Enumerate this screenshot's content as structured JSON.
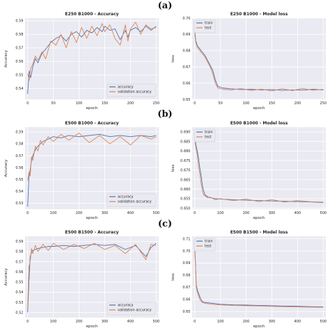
{
  "panel_labels": [
    "(a)",
    "(b)",
    "(c)"
  ],
  "colors": {
    "series_a": "#4c72b0",
    "series_b": "#dd8452",
    "plot_bg": "#eaeaf2"
  },
  "chart_data": [
    {
      "type": "line",
      "panel": "a",
      "title": "E250 B1000 - Accuracy",
      "xlabel": "epoch",
      "ylabel": "Accuracy",
      "xlim": [
        -5,
        255
      ],
      "ylim": [
        0.532,
        0.592
      ],
      "xticks": [
        0,
        50,
        100,
        150,
        200,
        250
      ],
      "yticks": [
        0.54,
        0.55,
        0.56,
        0.57,
        0.58,
        0.59
      ],
      "legend": "bottom-right",
      "grid": true,
      "series": [
        {
          "name": "accuracy",
          "x": [
            0,
            3,
            6,
            10,
            15,
            20,
            28,
            35,
            45,
            55,
            65,
            75,
            85,
            95,
            105,
            115,
            125,
            135,
            145,
            150,
            160,
            170,
            180,
            190,
            195,
            200,
            210,
            220,
            230,
            240,
            250
          ],
          "y": [
            0.536,
            0.553,
            0.548,
            0.556,
            0.562,
            0.559,
            0.566,
            0.569,
            0.574,
            0.577,
            0.579,
            0.575,
            0.58,
            0.582,
            0.578,
            0.583,
            0.581,
            0.585,
            0.582,
            0.586,
            0.583,
            0.584,
            0.576,
            0.583,
            0.578,
            0.583,
            0.585,
            0.582,
            0.586,
            0.583,
            0.586
          ]
        },
        {
          "name": "validation accuracy",
          "x": [
            0,
            3,
            6,
            10,
            15,
            20,
            28,
            35,
            45,
            55,
            65,
            75,
            85,
            95,
            105,
            115,
            125,
            135,
            145,
            150,
            160,
            170,
            180,
            190,
            195,
            200,
            210,
            220,
            230,
            240,
            250
          ],
          "y": [
            0.551,
            0.546,
            0.555,
            0.558,
            0.564,
            0.561,
            0.567,
            0.562,
            0.575,
            0.572,
            0.58,
            0.57,
            0.582,
            0.574,
            0.585,
            0.577,
            0.586,
            0.579,
            0.588,
            0.582,
            0.587,
            0.577,
            0.572,
            0.587,
            0.575,
            0.584,
            0.589,
            0.58,
            0.587,
            0.584,
            0.585
          ]
        }
      ]
    },
    {
      "type": "line",
      "panel": "a",
      "title": "E250 B1000 - Model loss",
      "xlabel": "epoch",
      "ylabel": "loss",
      "xlim": [
        -5,
        255
      ],
      "ylim": [
        0.65,
        0.7
      ],
      "xticks": [
        0,
        50,
        100,
        150,
        200,
        250
      ],
      "yticks": [
        0.65,
        0.66,
        0.67,
        0.68,
        0.69,
        0.7
      ],
      "legend": "top-left",
      "grid": true,
      "series": [
        {
          "name": "train",
          "x": [
            0,
            2,
            5,
            10,
            15,
            20,
            25,
            30,
            35,
            40,
            45,
            55,
            70,
            90,
            110,
            130,
            150,
            170,
            190,
            210,
            230,
            250
          ],
          "y": [
            0.692,
            0.686,
            0.683,
            0.681,
            0.679,
            0.677,
            0.674,
            0.671,
            0.668,
            0.662,
            0.658,
            0.657,
            0.6565,
            0.656,
            0.6562,
            0.6558,
            0.656,
            0.6556,
            0.6558,
            0.6557,
            0.6562,
            0.6558
          ]
        },
        {
          "name": "test",
          "x": [
            0,
            2,
            5,
            10,
            15,
            20,
            25,
            30,
            35,
            40,
            45,
            55,
            70,
            90,
            110,
            130,
            150,
            170,
            190,
            210,
            230,
            250
          ],
          "y": [
            0.69,
            0.685,
            0.682,
            0.68,
            0.678,
            0.676,
            0.673,
            0.67,
            0.666,
            0.66,
            0.657,
            0.6562,
            0.6558,
            0.6566,
            0.6555,
            0.6563,
            0.6552,
            0.6565,
            0.6554,
            0.6567,
            0.6556,
            0.6562
          ]
        }
      ]
    },
    {
      "type": "line",
      "panel": "b",
      "title": "E500 B1000 - Accuracy",
      "xlabel": "epoch",
      "ylabel": "Accuracy",
      "xlim": [
        -10,
        510
      ],
      "ylim": [
        0.525,
        0.594
      ],
      "xticks": [
        0,
        100,
        200,
        300,
        400,
        500
      ],
      "yticks": [
        0.53,
        0.54,
        0.55,
        0.56,
        0.57,
        0.58,
        0.59
      ],
      "legend": "bottom-right",
      "grid": true,
      "series": [
        {
          "name": "accuracy",
          "x": [
            0,
            5,
            10,
            15,
            20,
            30,
            40,
            50,
            60,
            80,
            100,
            130,
            160,
            200,
            240,
            280,
            320,
            360,
            400,
            440,
            480,
            500
          ],
          "y": [
            0.527,
            0.552,
            0.558,
            0.566,
            0.57,
            0.575,
            0.578,
            0.58,
            0.582,
            0.584,
            0.586,
            0.585,
            0.587,
            0.586,
            0.587,
            0.588,
            0.586,
            0.587,
            0.586,
            0.587,
            0.586,
            0.587
          ]
        },
        {
          "name": "validation accuracy",
          "x": [
            0,
            5,
            10,
            15,
            20,
            30,
            40,
            50,
            60,
            80,
            100,
            130,
            160,
            200,
            240,
            280,
            320,
            360,
            400,
            440,
            480,
            500
          ],
          "y": [
            0.549,
            0.556,
            0.553,
            0.569,
            0.566,
            0.578,
            0.574,
            0.583,
            0.579,
            0.586,
            0.582,
            0.588,
            0.583,
            0.589,
            0.581,
            0.587,
            0.58,
            0.586,
            0.579,
            0.587,
            0.584,
            0.586
          ]
        }
      ]
    },
    {
      "type": "line",
      "panel": "b",
      "title": "E500 B1000 - Model loss",
      "xlabel": "epoch",
      "ylabel": "loss",
      "xlim": [
        -10,
        510
      ],
      "ylim": [
        0.6495,
        0.6925
      ],
      "xticks": [
        0,
        100,
        200,
        300,
        400,
        500
      ],
      "yticks": [
        0.65,
        0.655,
        0.66,
        0.665,
        0.67,
        0.675,
        0.68,
        0.685,
        0.69
      ],
      "legend": "top-left",
      "grid": true,
      "series": [
        {
          "name": "train",
          "x": [
            0,
            5,
            10,
            15,
            20,
            25,
            30,
            35,
            40,
            50,
            60,
            80,
            100,
            150,
            200,
            250,
            300,
            350,
            400,
            450,
            500
          ],
          "y": [
            0.687,
            0.683,
            0.68,
            0.676,
            0.671,
            0.667,
            0.662,
            0.659,
            0.657,
            0.656,
            0.6555,
            0.655,
            0.6548,
            0.6545,
            0.6542,
            0.654,
            0.6538,
            0.6536,
            0.6535,
            0.6533,
            0.653
          ]
        },
        {
          "name": "test",
          "x": [
            0,
            5,
            10,
            15,
            20,
            25,
            30,
            35,
            40,
            50,
            60,
            80,
            100,
            150,
            200,
            250,
            300,
            350,
            400,
            450,
            500
          ],
          "y": [
            0.686,
            0.681,
            0.678,
            0.672,
            0.668,
            0.663,
            0.659,
            0.657,
            0.6565,
            0.6555,
            0.6558,
            0.6545,
            0.655,
            0.654,
            0.6548,
            0.6535,
            0.6545,
            0.6532,
            0.654,
            0.6534,
            0.6532
          ]
        }
      ]
    },
    {
      "type": "line",
      "panel": "c",
      "title": "E500 B1500 - Accuracy",
      "xlabel": "epoch",
      "ylabel": "Accuracy",
      "xlim": [
        -10,
        510
      ],
      "ylim": [
        0.515,
        0.595
      ],
      "xticks": [
        0,
        100,
        200,
        300,
        400,
        500
      ],
      "yticks": [
        0.52,
        0.53,
        0.54,
        0.55,
        0.56,
        0.57,
        0.58,
        0.59
      ],
      "legend": "bottom-right",
      "grid": true,
      "series": [
        {
          "name": "accuracy",
          "x": [
            0,
            5,
            10,
            15,
            20,
            30,
            40,
            60,
            80,
            100,
            140,
            180,
            220,
            260,
            300,
            340,
            380,
            420,
            460,
            480,
            500
          ],
          "y": [
            0.52,
            0.55,
            0.575,
            0.579,
            0.581,
            0.582,
            0.583,
            0.584,
            0.585,
            0.585,
            0.586,
            0.585,
            0.586,
            0.587,
            0.586,
            0.587,
            0.582,
            0.586,
            0.575,
            0.584,
            0.588
          ]
        },
        {
          "name": "validation accuracy",
          "x": [
            0,
            5,
            10,
            15,
            20,
            30,
            40,
            60,
            80,
            100,
            140,
            180,
            220,
            260,
            300,
            340,
            380,
            420,
            460,
            480,
            500
          ],
          "y": [
            0.524,
            0.565,
            0.57,
            0.583,
            0.578,
            0.586,
            0.58,
            0.587,
            0.581,
            0.588,
            0.582,
            0.587,
            0.583,
            0.588,
            0.582,
            0.586,
            0.578,
            0.587,
            0.572,
            0.587,
            0.586
          ]
        }
      ]
    },
    {
      "type": "line",
      "panel": "c",
      "title": "E500 B1500 - Model loss",
      "xlabel": "epoch",
      "ylabel": "loss",
      "xlim": [
        -10,
        510
      ],
      "ylim": [
        0.645,
        0.712
      ],
      "xticks": [
        0,
        100,
        200,
        300,
        400,
        500
      ],
      "yticks": [
        0.65,
        0.66,
        0.67,
        0.68,
        0.69,
        0.7,
        0.71
      ],
      "legend": "top-left",
      "grid": true,
      "series": [
        {
          "name": "train",
          "x": [
            0,
            3,
            6,
            10,
            15,
            20,
            25,
            30,
            40,
            60,
            80,
            100,
            150,
            200,
            250,
            300,
            350,
            400,
            450,
            500
          ],
          "y": [
            0.703,
            0.69,
            0.672,
            0.668,
            0.665,
            0.662,
            0.66,
            0.658,
            0.6575,
            0.657,
            0.6565,
            0.656,
            0.6555,
            0.6553,
            0.655,
            0.6548,
            0.6545,
            0.6543,
            0.654,
            0.6538
          ]
        },
        {
          "name": "test",
          "x": [
            0,
            3,
            6,
            10,
            15,
            20,
            25,
            30,
            40,
            60,
            80,
            100,
            150,
            200,
            250,
            300,
            350,
            400,
            450,
            500
          ],
          "y": [
            0.7,
            0.688,
            0.67,
            0.666,
            0.663,
            0.66,
            0.6585,
            0.6575,
            0.6568,
            0.6562,
            0.6558,
            0.6555,
            0.655,
            0.6548,
            0.6546,
            0.6543,
            0.654,
            0.6538,
            0.6536,
            0.6535
          ]
        }
      ]
    }
  ]
}
